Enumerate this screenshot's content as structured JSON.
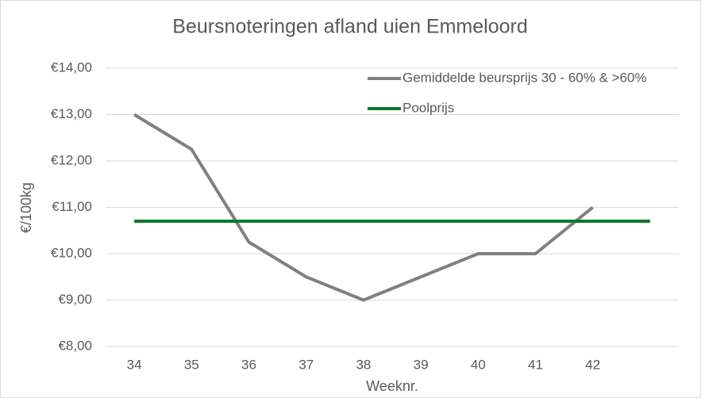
{
  "chart_data": {
    "type": "line",
    "title": "Beursnoteringen afland uien Emmeloord",
    "x_label": "Weeknr.",
    "y_label": "€/100kg",
    "categories": [
      "34",
      "35",
      "36",
      "37",
      "38",
      "39",
      "40",
      "41",
      "42",
      null
    ],
    "series": [
      {
        "name": "Gemiddelde beursprijs 30 - 60% & >60%",
        "color": "#808080",
        "values": [
          13.0,
          12.25,
          10.25,
          9.5,
          9.0,
          9.5,
          10.0,
          10.0,
          11.0,
          null
        ]
      },
      {
        "name": "Poolprijs",
        "color": "#0a7a2a",
        "values": [
          10.7,
          10.7,
          10.7,
          10.7,
          10.7,
          10.7,
          10.7,
          10.7,
          10.7,
          10.7
        ]
      }
    ],
    "ylim": [
      8,
      14
    ],
    "yticks": [
      {
        "value": 8,
        "label": "€8,00"
      },
      {
        "value": 9,
        "label": "€9,00"
      },
      {
        "value": 10,
        "label": "€10,00"
      },
      {
        "value": 11,
        "label": "€11,00"
      },
      {
        "value": 12,
        "label": "€12,00"
      },
      {
        "value": 13,
        "label": "€13,00"
      },
      {
        "value": 14,
        "label": "€14,00"
      }
    ],
    "grid": true,
    "legend": "upper right"
  }
}
